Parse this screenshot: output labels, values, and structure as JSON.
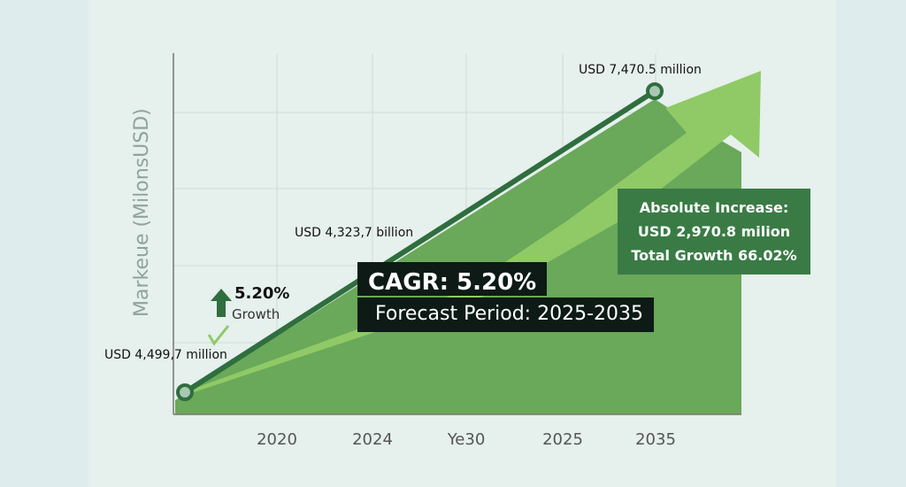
{
  "chart_data": {
    "type": "line",
    "title": "",
    "ylabel": "Markeue (MilonsUSD)",
    "xlabel": "",
    "x_ticks": [
      "2020",
      "2024",
      "Ye30",
      "2025",
      "2035"
    ],
    "grid": true,
    "series": [
      {
        "points": [
          {
            "value": 4499.7,
            "label": "USD 4,499,7 million"
          },
          {
            "value": 7470.5,
            "label": "USD 7,470.5 million"
          }
        ]
      }
    ],
    "annotations": {
      "mid_label": "USD 4,323,7 billion",
      "growth_pct": "5.20%",
      "growth_word": "Growth",
      "cagr": "CAGR: 5.20%",
      "forecast": "Forecast Period: 2025-2035",
      "absolute_title": "Absolute Increase:",
      "absolute_value": "USD 2,970.8 milion",
      "total_growth": "Total Growth 66.02%"
    },
    "colors": {
      "line": "#2f6e3e",
      "area": "#6aa85a",
      "arrow": "#8fca66",
      "box_dark": "#0d1a15",
      "box_green": "#3a7b45"
    }
  }
}
